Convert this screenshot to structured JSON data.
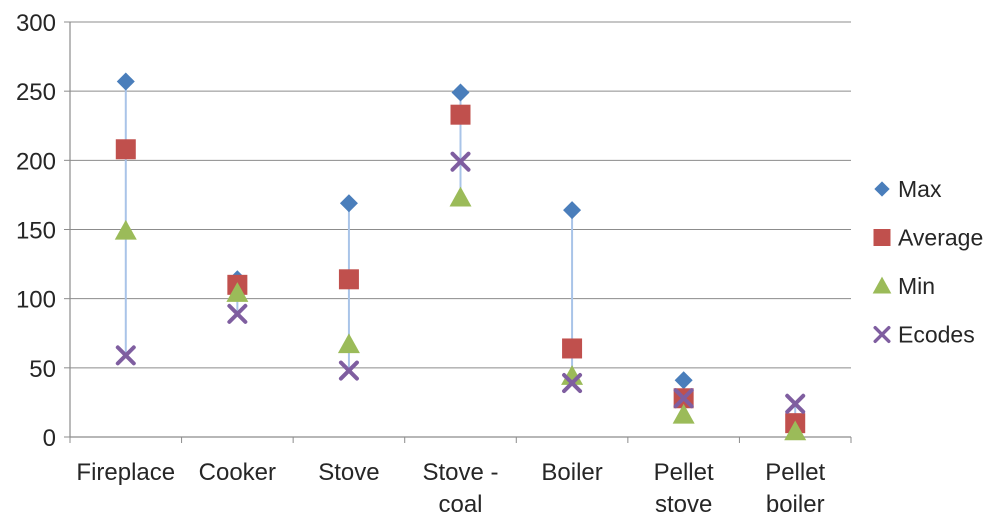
{
  "chart_data": {
    "type": "scatter",
    "title": "",
    "xlabel": "",
    "ylabel": "",
    "ylim": [
      0,
      300
    ],
    "yticks": [
      0,
      50,
      100,
      150,
      200,
      250,
      300
    ],
    "grid": true,
    "legend_position": "right",
    "categories": [
      [
        "Fireplace"
      ],
      [
        "Cooker"
      ],
      [
        "Stove"
      ],
      [
        "Stove -",
        "coal"
      ],
      [
        "Boiler"
      ],
      [
        "Pellet",
        "stove"
      ],
      [
        "Pellet",
        "boiler"
      ]
    ],
    "series": [
      {
        "name": "Max",
        "marker": "diamond",
        "color": "#4A7EBB",
        "values": [
          257,
          114,
          169,
          249,
          164,
          41,
          5
        ]
      },
      {
        "name": "Average",
        "marker": "square",
        "color": "#C0504D",
        "values": [
          208,
          110,
          114,
          233,
          64,
          28,
          10
        ]
      },
      {
        "name": "Min",
        "marker": "triangle",
        "color": "#9BBB59",
        "values": [
          149,
          104,
          67,
          173,
          44,
          16,
          4
        ]
      },
      {
        "name": "Ecodes",
        "marker": "x",
        "color": "#7F5EA0",
        "values": [
          59,
          89,
          48,
          199,
          39,
          28,
          24
        ]
      }
    ],
    "range_line_color": "#A9C4E8",
    "gridline_color": "#8C8C8C"
  }
}
